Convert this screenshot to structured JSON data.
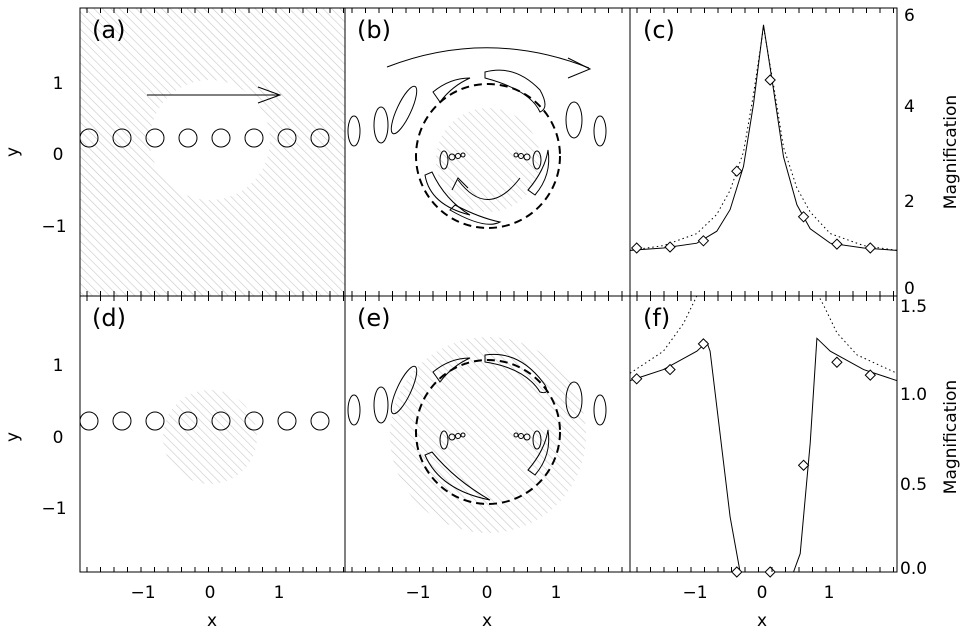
{
  "figure": {
    "panels": [
      {
        "id": "a",
        "label": "(a)"
      },
      {
        "id": "b",
        "label": "(b)"
      },
      {
        "id": "c",
        "label": "(c)"
      },
      {
        "id": "d",
        "label": "(d)"
      },
      {
        "id": "e",
        "label": "(e)"
      },
      {
        "id": "f",
        "label": "(f)"
      }
    ],
    "x_axis_label": "x",
    "y_axis_label": "y",
    "x_ticks": [
      "−1",
      "0",
      "1"
    ],
    "y_ticks": [
      "1",
      "0",
      "−1"
    ],
    "right_axis_label": "Magnification",
    "right_ticks_top": [
      "6",
      "4",
      "2",
      "0"
    ],
    "right_ticks_bottom": [
      "1.5",
      "1.0",
      "0.5",
      "0.0"
    ]
  },
  "chart_data": [
    {
      "type": "line",
      "panel": "c",
      "ylabel": "Magnification",
      "ylim": [
        0,
        6
      ],
      "xlim": [
        -2,
        2
      ],
      "series": [
        {
          "style": "solid",
          "x": [
            -2.0,
            -1.5,
            -1.0,
            -0.7,
            -0.5,
            -0.3,
            -0.15,
            0.0,
            0.15,
            0.3,
            0.5,
            0.7,
            1.0,
            1.5,
            2.0
          ],
          "y": [
            0.95,
            1.0,
            1.1,
            1.35,
            1.8,
            2.7,
            4.0,
            5.65,
            4.3,
            2.9,
            1.9,
            1.4,
            1.1,
            1.0,
            0.95
          ]
        },
        {
          "style": "dotted",
          "x": [
            -2.0,
            -1.5,
            -1.0,
            -0.7,
            -0.5,
            -0.3,
            -0.15,
            0.0,
            0.15,
            0.3,
            0.5,
            0.7,
            1.0,
            1.5,
            2.0
          ],
          "y": [
            0.95,
            1.05,
            1.3,
            1.7,
            2.2,
            3.0,
            4.2,
            5.6,
            4.4,
            3.1,
            2.25,
            1.75,
            1.3,
            1.05,
            0.95
          ]
        }
      ],
      "markers": {
        "x": [
          -1.9,
          -1.4,
          -0.9,
          -0.4,
          0.1,
          0.6,
          1.1,
          1.6
        ],
        "y": [
          1.0,
          1.02,
          1.15,
          2.6,
          4.5,
          1.65,
          1.08,
          1.0
        ]
      }
    },
    {
      "type": "line",
      "panel": "f",
      "ylabel": "Magnification",
      "ylim": [
        0,
        1.5
      ],
      "xlim": [
        -2,
        2
      ],
      "series": [
        {
          "style": "solid",
          "x": [
            -2.0,
            -1.5,
            -1.0,
            -0.85,
            -0.8,
            -0.5,
            -0.35,
            0.45,
            0.55,
            0.7,
            0.8,
            1.0,
            1.5,
            2.0
          ],
          "y": [
            1.04,
            1.1,
            1.2,
            1.25,
            1.2,
            0.3,
            0.0,
            0.0,
            0.1,
            0.7,
            1.27,
            1.2,
            1.1,
            1.04
          ]
        },
        {
          "style": "dotted",
          "x": [
            -2.0,
            -1.5,
            -1.2,
            -1.0,
            -0.85,
            0.75,
            0.9,
            1.1,
            1.4,
            2.0
          ],
          "y": [
            1.08,
            1.2,
            1.35,
            1.5,
            1.55,
            1.55,
            1.45,
            1.3,
            1.18,
            1.08
          ]
        }
      ],
      "markers": {
        "x": [
          -1.9,
          -1.4,
          -0.9,
          -0.4,
          0.1,
          0.6,
          1.1,
          1.6
        ],
        "y": [
          1.05,
          1.1,
          1.24,
          0.0,
          0.0,
          0.58,
          1.14,
          1.07
        ]
      }
    }
  ]
}
